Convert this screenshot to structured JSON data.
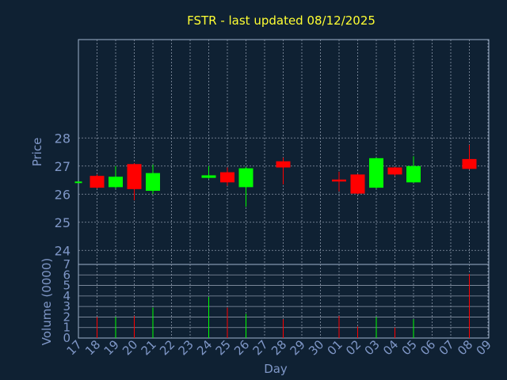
{
  "chart_data": {
    "type": "candlestick",
    "title": "FSTR - last updated 08/12/2025",
    "xlabel": "Day",
    "colors": {
      "background": "#0f2133",
      "frame": "#9fb2cc",
      "grid": "#8a96a8",
      "text": "#7f97c7",
      "title": "#ffff33",
      "up": "#00ff00",
      "down": "#ff0000"
    },
    "x_ticks": [
      "17",
      "18",
      "19",
      "20",
      "21",
      "22",
      "23",
      "24",
      "25",
      "26",
      "27",
      "28",
      "29",
      "30",
      "01",
      "02",
      "03",
      "04",
      "05",
      "06",
      "07",
      "08",
      "09"
    ],
    "price_panel": {
      "ylabel": "Price",
      "ylim": [
        23.5,
        31.5
      ],
      "ticks": [
        "24",
        "25",
        "26",
        "27",
        "28"
      ],
      "grid": true,
      "candles": [
        {
          "day": "17",
          "open": 26.45,
          "close": 26.45,
          "high": 26.45,
          "low": 26.45
        },
        {
          "day": "18",
          "open": 26.65,
          "close": 26.23,
          "high": 26.7,
          "low": 26.2
        },
        {
          "day": "19",
          "open": 26.25,
          "close": 26.62,
          "high": 27.0,
          "low": 26.2
        },
        {
          "day": "20",
          "open": 27.07,
          "close": 26.18,
          "high": 27.1,
          "low": 25.78
        },
        {
          "day": "21",
          "open": 26.12,
          "close": 26.75,
          "high": 27.05,
          "low": 26.0
        },
        {
          "day": "24",
          "open": 26.58,
          "close": 26.67,
          "high": 27.0,
          "low": 26.55
        },
        {
          "day": "25",
          "open": 26.78,
          "close": 26.42,
          "high": 26.95,
          "low": 26.3
        },
        {
          "day": "26",
          "open": 26.25,
          "close": 26.92,
          "high": 26.97,
          "low": 25.55
        },
        {
          "day": "28",
          "open": 27.17,
          "close": 26.95,
          "high": 27.3,
          "low": 26.35
        },
        {
          "day": "01",
          "open": 26.52,
          "close": 26.45,
          "high": 26.8,
          "low": 26.1
        },
        {
          "day": "02",
          "open": 26.7,
          "close": 26.02,
          "high": 26.72,
          "low": 26.0
        },
        {
          "day": "03",
          "open": 26.23,
          "close": 27.28,
          "high": 27.3,
          "low": 26.2
        },
        {
          "day": "04",
          "open": 26.95,
          "close": 26.7,
          "high": 26.97,
          "low": 26.65
        },
        {
          "day": "05",
          "open": 26.42,
          "close": 27.0,
          "high": 27.35,
          "low": 26.4
        },
        {
          "day": "08",
          "open": 27.25,
          "close": 26.9,
          "high": 27.75,
          "low": 26.88
        }
      ]
    },
    "volume_panel": {
      "ylabel": "Volume (0000)",
      "ylim": [
        0,
        7
      ],
      "ticks": [
        "0",
        "1",
        "2",
        "3",
        "4",
        "5",
        "6",
        "7"
      ],
      "grid": true,
      "bars": [
        {
          "day": "18",
          "value": 2.0,
          "direction": "down"
        },
        {
          "day": "19",
          "value": 2.0,
          "direction": "up"
        },
        {
          "day": "20",
          "value": 2.1,
          "direction": "down"
        },
        {
          "day": "21",
          "value": 2.9,
          "direction": "up"
        },
        {
          "day": "24",
          "value": 3.9,
          "direction": "up"
        },
        {
          "day": "25",
          "value": 2.9,
          "direction": "down"
        },
        {
          "day": "26",
          "value": 2.3,
          "direction": "up"
        },
        {
          "day": "28",
          "value": 1.8,
          "direction": "down"
        },
        {
          "day": "01",
          "value": 2.1,
          "direction": "down"
        },
        {
          "day": "02",
          "value": 1.1,
          "direction": "down"
        },
        {
          "day": "03",
          "value": 2.0,
          "direction": "up"
        },
        {
          "day": "04",
          "value": 1.0,
          "direction": "down"
        },
        {
          "day": "05",
          "value": 1.8,
          "direction": "up"
        },
        {
          "day": "08",
          "value": 6.1,
          "direction": "down"
        }
      ]
    }
  }
}
